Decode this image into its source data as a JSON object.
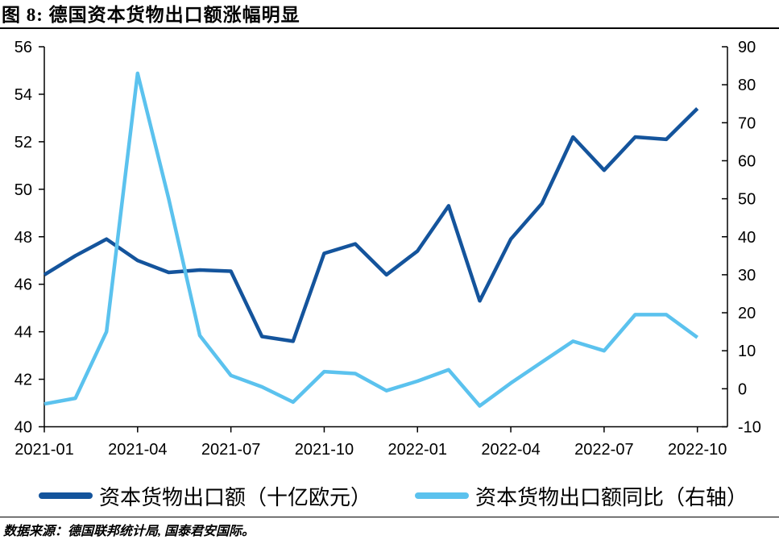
{
  "title": "图 8: 德国资本货物出口额涨幅明显",
  "source_note": "数据来源：德国联邦统计局, 国泰君安国际。",
  "colors": {
    "dark_blue": "#14549C",
    "light_blue": "#5BC2EE",
    "axis": "#000000"
  },
  "legend": {
    "items": [
      {
        "label": "资本货物出口额（十亿欧元）",
        "color": "#14549C"
      },
      {
        "label": "资本货物出口额同比（右轴）",
        "color": "#5BC2EE"
      }
    ]
  },
  "chart_data": {
    "type": "line",
    "title": "图 8: 德国资本货物出口额涨幅明显",
    "x": [
      "2021-01",
      "2021-02",
      "2021-03",
      "2021-04",
      "2021-05",
      "2021-06",
      "2021-07",
      "2021-08",
      "2021-09",
      "2021-10",
      "2021-11",
      "2021-12",
      "2022-01",
      "2022-02",
      "2022-03",
      "2022-04",
      "2022-05",
      "2022-06",
      "2022-07",
      "2022-08",
      "2022-09",
      "2022-10"
    ],
    "x_tick_labels": [
      "2021-01",
      "2021-04",
      "2021-07",
      "2021-10",
      "2022-01",
      "2022-04",
      "2022-07",
      "2022-10"
    ],
    "series": [
      {
        "name": "资本货物出口额（十亿欧元）",
        "yaxis": "left",
        "color": "#14549C",
        "values": [
          46.4,
          47.2,
          47.9,
          47.0,
          46.5,
          46.6,
          46.55,
          43.8,
          43.6,
          47.3,
          47.7,
          46.4,
          47.4,
          49.3,
          45.3,
          47.9,
          49.4,
          52.2,
          50.8,
          52.2,
          52.1,
          53.4
        ]
      },
      {
        "name": "资本货物出口额同比（右轴）",
        "yaxis": "right",
        "color": "#5BC2EE",
        "values": [
          -4,
          -2.5,
          15,
          83,
          50,
          14,
          3.5,
          0.5,
          -3.5,
          4.5,
          4,
          -0.5,
          2,
          5,
          -4.5,
          1.5,
          7,
          12.5,
          10,
          19.5,
          19.5,
          13.5
        ]
      }
    ],
    "left_axis": {
      "min": 40,
      "max": 56,
      "step": 2,
      "tick_labels": [
        "56",
        "54",
        "52",
        "50",
        "48",
        "46",
        "44",
        "42",
        "40"
      ]
    },
    "right_axis": {
      "min": -10,
      "max": 90,
      "step": 10,
      "tick_labels": [
        "90",
        "80",
        "70",
        "60",
        "50",
        "40",
        "30",
        "20",
        "10",
        "0",
        "-10"
      ]
    },
    "grid": false,
    "legend_position": "bottom"
  }
}
